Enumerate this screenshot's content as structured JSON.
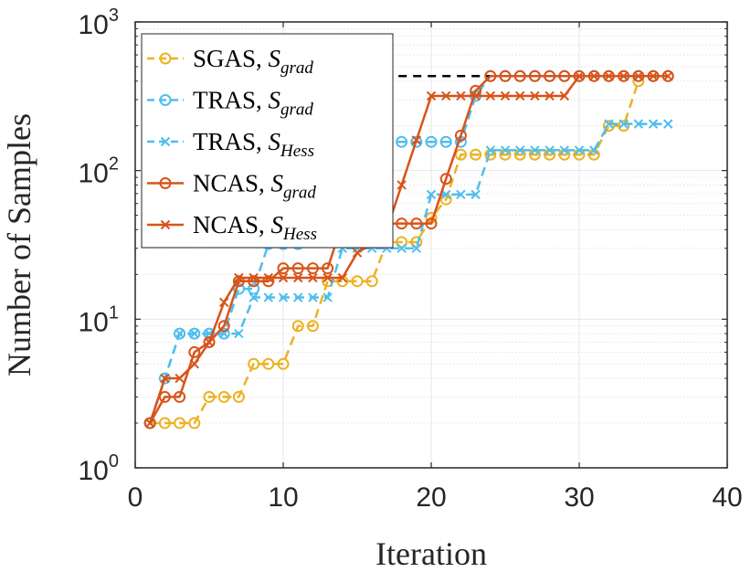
{
  "chart_data": {
    "type": "line",
    "title": "",
    "xlabel": "Iteration",
    "ylabel": "Number of Samples",
    "xlim": [
      0,
      40
    ],
    "ylim": [
      1,
      1000
    ],
    "yscale": "log",
    "grid": true,
    "legend_position": "top-left",
    "x_ticks": [
      0,
      10,
      20,
      30,
      40
    ],
    "x_tick_labels": [
      "0",
      "10",
      "20",
      "30",
      "40"
    ],
    "y_ticks": [
      1,
      10,
      100,
      1000
    ],
    "y_tick_labels": [
      {
        "base": "10",
        "exp": "0"
      },
      {
        "base": "10",
        "exp": "1"
      },
      {
        "base": "10",
        "exp": "2"
      },
      {
        "base": "10",
        "exp": "3"
      }
    ],
    "reference_line": {
      "value": 432,
      "x_range": [
        1,
        24
      ],
      "description": "dashed black/gray horizontal line"
    },
    "series": [
      {
        "name": "SGAS",
        "legend": {
          "main": "SGAS,",
          "sym": "S",
          "sub": "grad"
        },
        "color": "#EDB120",
        "marker": "circle",
        "line": "dashed",
        "x": [
          1,
          2,
          3,
          4,
          5,
          6,
          7,
          8,
          9,
          10,
          11,
          12,
          13,
          14,
          15,
          16,
          17,
          18,
          19,
          20,
          21,
          22,
          23,
          24,
          25,
          26,
          27,
          28,
          29,
          30,
          31,
          32,
          33,
          34
        ],
        "values": [
          2,
          2,
          2,
          2,
          3,
          3,
          3,
          5,
          5,
          5,
          9,
          9,
          18,
          18,
          18,
          18,
          33,
          33,
          33,
          48,
          64,
          128,
          128,
          128,
          128,
          128,
          128,
          128,
          128,
          128,
          128,
          200,
          200,
          400
        ]
      },
      {
        "name": "TRAS S_grad",
        "legend": {
          "main": "TRAS,",
          "sym": "S",
          "sub": "grad"
        },
        "color": "#4DBEEE",
        "marker": "circle",
        "line": "dashed",
        "x": [
          1,
          2,
          3,
          4,
          5,
          6,
          7,
          8,
          9,
          10,
          11,
          12,
          13,
          14,
          15,
          16,
          17,
          18,
          19,
          20,
          21,
          22,
          23,
          24,
          25,
          26,
          27,
          28,
          29,
          30,
          31,
          32,
          33,
          34,
          35,
          36
        ],
        "values": [
          2,
          4,
          8,
          8,
          8,
          8,
          16,
          16,
          32,
          32,
          32,
          64,
          64,
          64,
          64,
          64,
          156,
          156,
          156,
          156,
          156,
          156,
          318,
          432,
          432,
          432,
          432,
          432,
          432,
          432,
          432,
          432,
          432,
          432,
          432,
          432
        ]
      },
      {
        "name": "TRAS S_Hess",
        "legend": {
          "main": "TRAS,",
          "sym": "S",
          "sub": "Hess"
        },
        "color": "#4DBEEE",
        "marker": "x",
        "line": "dashed",
        "x": [
          1,
          2,
          3,
          4,
          5,
          6,
          7,
          8,
          9,
          10,
          11,
          12,
          13,
          14,
          15,
          16,
          17,
          18,
          19,
          20,
          21,
          22,
          23,
          24,
          25,
          26,
          27,
          28,
          29,
          30,
          31,
          32,
          33,
          34,
          35,
          36
        ],
        "values": [
          2,
          4,
          8,
          8,
          8,
          8,
          8,
          14,
          14,
          14,
          14,
          14,
          14,
          30,
          30,
          30,
          30,
          30,
          30,
          69,
          69,
          69,
          69,
          137,
          137,
          137,
          137,
          137,
          137,
          137,
          137,
          206,
          206,
          206,
          206,
          206
        ]
      },
      {
        "name": "NCAS S_grad",
        "legend": {
          "main": "NCAS,",
          "sym": "S",
          "sub": "grad"
        },
        "color": "#D95319",
        "marker": "circle",
        "line": "solid",
        "x": [
          1,
          2,
          3,
          4,
          5,
          6,
          7,
          8,
          9,
          10,
          11,
          12,
          13,
          14,
          15,
          16,
          17,
          18,
          19,
          20,
          21,
          22,
          23,
          24,
          25,
          26,
          27,
          28,
          29,
          30,
          31,
          32,
          33,
          34,
          35,
          36
        ],
        "values": [
          2,
          3,
          3,
          6,
          7,
          9,
          18,
          18,
          18,
          22,
          22,
          22,
          22,
          44,
          44,
          44,
          44,
          44,
          44,
          44,
          88,
          172,
          344,
          432,
          432,
          432,
          432,
          432,
          432,
          432,
          432,
          432,
          432,
          432,
          432,
          432
        ]
      },
      {
        "name": "NCAS S_Hess",
        "legend": {
          "main": "NCAS,",
          "sym": "S",
          "sub": "Hess"
        },
        "color": "#D95319",
        "marker": "x",
        "line": "solid",
        "x": [
          1,
          2,
          3,
          4,
          5,
          6,
          7,
          8,
          9,
          10,
          11,
          12,
          13,
          14,
          15,
          16,
          17,
          18,
          19,
          20,
          21,
          22,
          23,
          24,
          25,
          26,
          27,
          28,
          29,
          30,
          31,
          32,
          33,
          34,
          35,
          36
        ],
        "values": [
          2,
          4,
          4,
          5,
          7,
          13,
          19,
          19,
          19,
          19,
          19,
          19,
          19,
          19,
          28,
          32,
          40,
          80,
          160,
          318,
          318,
          318,
          318,
          318,
          318,
          318,
          318,
          318,
          318,
          432,
          432,
          432,
          432,
          432,
          432,
          432
        ]
      }
    ]
  }
}
